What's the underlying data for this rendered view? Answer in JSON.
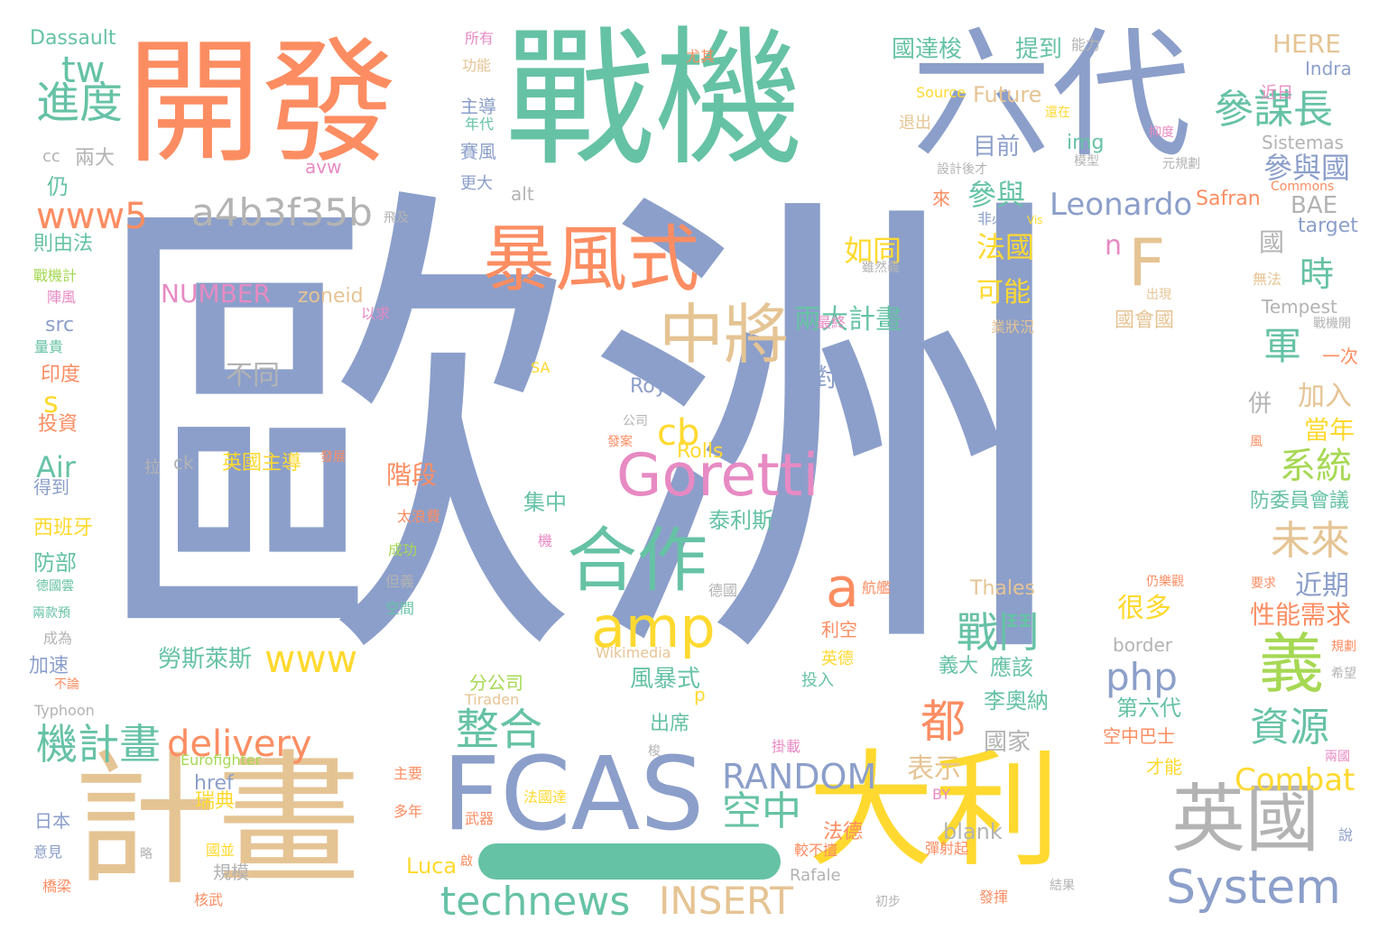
{
  "palette": {
    "blue": "#8c9fca",
    "teal": "#66c2a5",
    "orange": "#fc8d62",
    "yellow": "#ffd92f",
    "tan": "#e5c494",
    "gray": "#b3b3b3",
    "green": "#a6d854",
    "pink": "#e78ac3"
  },
  "decoration": {
    "dash_bar_color": "#66c2a5"
  },
  "words": [
    {
      "text": "歐洲",
      "color": "#8c9fca"
    },
    {
      "text": "戰機",
      "color": "#66c2a5"
    },
    {
      "text": "開發",
      "color": "#fc8d62"
    },
    {
      "text": "六代",
      "color": "#8c9fca"
    },
    {
      "text": "計畫",
      "color": "#e5c494"
    },
    {
      "text": "大利",
      "color": "#ffd92f"
    },
    {
      "text": "FCAS",
      "color": "#8c9fca"
    },
    {
      "text": "暴風式",
      "color": "#fc8d62"
    },
    {
      "text": "英國",
      "color": "#b3b3b3"
    },
    {
      "text": "中將",
      "color": "#e5c494"
    },
    {
      "text": "合作",
      "color": "#66c2a5"
    },
    {
      "text": "amp",
      "color": "#ffd92f"
    },
    {
      "text": "Goretti",
      "color": "#e78ac3"
    },
    {
      "text": "a4b3f35b",
      "color": "#b3b3b3"
    },
    {
      "text": "參謀長",
      "color": "#66c2a5"
    },
    {
      "text": "義",
      "color": "#a6d854"
    },
    {
      "text": "F",
      "color": "#e5c494"
    },
    {
      "text": "System",
      "color": "#8c9fca"
    },
    {
      "text": "technews",
      "color": "#66c2a5"
    },
    {
      "text": "INSERT",
      "color": "#e5c494"
    },
    {
      "text": "機計畫",
      "color": "#66c2a5"
    },
    {
      "text": "delivery",
      "color": "#fc8d62"
    },
    {
      "text": "進度",
      "color": "#66c2a5"
    },
    {
      "text": "www5",
      "color": "#fc8d62"
    },
    {
      "text": "tw",
      "color": "#66c2a5"
    },
    {
      "text": "整合",
      "color": "#66c2a5"
    },
    {
      "text": "RANDOM",
      "color": "#8c9fca"
    },
    {
      "text": "空中",
      "color": "#66c2a5"
    },
    {
      "text": "www",
      "color": "#ffd92f"
    },
    {
      "text": "戰鬥",
      "color": "#66c2a5"
    },
    {
      "text": "都",
      "color": "#fc8d62"
    },
    {
      "text": "資源",
      "color": "#66c2a5"
    },
    {
      "text": "php",
      "color": "#8c9fca"
    },
    {
      "text": "系統",
      "color": "#a6d854"
    },
    {
      "text": "未來",
      "color": "#e5c494"
    },
    {
      "text": "時",
      "color": "#66c2a5"
    },
    {
      "text": "軍",
      "color": "#66c2a5"
    },
    {
      "text": "cb",
      "color": "#ffd92f"
    },
    {
      "text": "a",
      "color": "#fc8d62"
    },
    {
      "text": "n",
      "color": "#e78ac3"
    },
    {
      "text": "Leonardo",
      "color": "#8c9fca"
    },
    {
      "text": "Combat",
      "color": "#ffd92f"
    },
    {
      "text": "參與國",
      "color": "#8c9fca"
    },
    {
      "text": "兩大計畫",
      "color": "#66c2a5"
    },
    {
      "text": "如同",
      "color": "#ffd92f"
    },
    {
      "text": "法國",
      "color": "#ffd92f"
    },
    {
      "text": "可能",
      "color": "#ffd92f"
    },
    {
      "text": "參與",
      "color": "#66c2a5"
    },
    {
      "text": "目前",
      "color": "#8c9fca"
    },
    {
      "text": "國達梭",
      "color": "#66c2a5"
    },
    {
      "text": "提到",
      "color": "#66c2a5"
    },
    {
      "text": "HERE",
      "color": "#e5c494"
    },
    {
      "text": "Future",
      "color": "#e5c494"
    },
    {
      "text": "img",
      "color": "#66c2a5"
    },
    {
      "text": "Sistemas",
      "color": "#b3b3b3"
    },
    {
      "text": "Safran",
      "color": "#fc8d62"
    },
    {
      "text": "BAE",
      "color": "#b3b3b3"
    },
    {
      "text": "target",
      "color": "#8c9fca"
    },
    {
      "text": "國",
      "color": "#b3b3b3"
    },
    {
      "text": "Tempest",
      "color": "#b3b3b3"
    },
    {
      "text": "國會國",
      "color": "#e5c494"
    },
    {
      "text": "NUMBER",
      "color": "#e78ac3"
    },
    {
      "text": "zoneid",
      "color": "#e5c494"
    },
    {
      "text": "不同",
      "color": "#b3b3b3"
    },
    {
      "text": "階段",
      "color": "#fc8d62"
    },
    {
      "text": "Royce",
      "color": "#8c9fca"
    },
    {
      "text": "Rolls",
      "color": "#ffd92f"
    },
    {
      "text": "泰利斯",
      "color": "#66c2a5"
    },
    {
      "text": "集中",
      "color": "#66c2a5"
    },
    {
      "text": "加入",
      "color": "#e5c494"
    },
    {
      "text": "當年",
      "color": "#ffd92f"
    },
    {
      "text": "近期",
      "color": "#8c9fca"
    },
    {
      "text": "性能需求",
      "color": "#fc8d62"
    },
    {
      "text": "很多",
      "color": "#ffd92f"
    },
    {
      "text": "防委員會議",
      "color": "#66c2a5"
    },
    {
      "text": "風暴式",
      "color": "#66c2a5"
    },
    {
      "text": "勞斯萊斯",
      "color": "#66c2a5"
    },
    {
      "text": "應該",
      "color": "#66c2a5"
    },
    {
      "text": "李奧納",
      "color": "#66c2a5"
    },
    {
      "text": "國家",
      "color": "#b3b3b3"
    },
    {
      "text": "第六代",
      "color": "#66c2a5"
    },
    {
      "text": "表示",
      "color": "#e5c494"
    },
    {
      "text": "空中巴士",
      "color": "#fc8d62"
    },
    {
      "text": "Thales",
      "color": "#e5c494"
    },
    {
      "text": "border",
      "color": "#b3b3b3"
    },
    {
      "text": "href",
      "color": "#8c9fca"
    },
    {
      "text": "Luca",
      "color": "#ffd92f"
    },
    {
      "text": "blank",
      "color": "#b3b3b3"
    },
    {
      "text": "Typhoon",
      "color": "#b3b3b3"
    },
    {
      "text": "Eurofighter",
      "color": "#a6d854"
    },
    {
      "text": "Wikimedia",
      "color": "#e5c494"
    },
    {
      "text": "Rafale",
      "color": "#b3b3b3"
    },
    {
      "text": "Tiraden",
      "color": "#e5c494"
    },
    {
      "text": "Dassault",
      "color": "#66c2a5"
    },
    {
      "text": "Air",
      "color": "#66c2a5"
    },
    {
      "text": "s",
      "color": "#ffd92f"
    },
    {
      "text": "src",
      "color": "#8c9fca"
    },
    {
      "text": "alt",
      "color": "#b3b3b3"
    },
    {
      "text": "avw",
      "color": "#e78ac3"
    },
    {
      "text": "ck",
      "color": "#b3b3b3"
    },
    {
      "text": "cc",
      "color": "#b3b3b3"
    },
    {
      "text": "BY",
      "color": "#e78ac3"
    },
    {
      "text": "SA",
      "color": "#ffd92f"
    },
    {
      "text": "p",
      "color": "#ffd92f"
    },
    {
      "text": "Indra",
      "color": "#8c9fca"
    },
    {
      "text": "Source",
      "color": "#ffd92f"
    },
    {
      "text": "Commons",
      "color": "#fc8d62"
    },
    {
      "text": "Vis",
      "color": "#ffd92f"
    },
    {
      "text": "英國主導",
      "color": "#ffd92f"
    },
    {
      "text": "西班牙",
      "color": "#ffd92f"
    },
    {
      "text": "防部",
      "color": "#66c2a5"
    },
    {
      "text": "印度",
      "color": "#fc8d62"
    },
    {
      "text": "投資",
      "color": "#fc8d62"
    },
    {
      "text": "得到",
      "color": "#8c9fca"
    },
    {
      "text": "加速",
      "color": "#8c9fca"
    },
    {
      "text": "日本",
      "color": "#8c9fca"
    },
    {
      "text": "瑞典",
      "color": "#ffd92f"
    },
    {
      "text": "規模",
      "color": "#b3b3b3"
    },
    {
      "text": "多年",
      "color": "#fc8d62"
    },
    {
      "text": "出席",
      "color": "#66c2a5"
    },
    {
      "text": "分公司",
      "color": "#a6d854"
    },
    {
      "text": "對",
      "color": "#8c9fca"
    },
    {
      "text": "併",
      "color": "#b3b3b3"
    },
    {
      "text": "義大",
      "color": "#66c2a5"
    },
    {
      "text": "法德",
      "color": "#fc8d62"
    },
    {
      "text": "才能",
      "color": "#ffd92f"
    },
    {
      "text": "兩大",
      "color": "#b3b3b3"
    },
    {
      "text": "則由法",
      "color": "#66c2a5"
    },
    {
      "text": "仍",
      "color": "#66c2a5"
    },
    {
      "text": "賽風",
      "color": "#8c9fca"
    },
    {
      "text": "主導",
      "color": "#8c9fca"
    },
    {
      "text": "更大",
      "color": "#8c9fca"
    },
    {
      "text": "年代",
      "color": "#66c2a5"
    },
    {
      "text": "所有",
      "color": "#e78ac3"
    },
    {
      "text": "功能",
      "color": "#e5c494"
    },
    {
      "text": "近日",
      "color": "#e78ac3"
    },
    {
      "text": "能力",
      "color": "#b3b3b3"
    },
    {
      "text": "尤其",
      "color": "#fc8d62"
    },
    {
      "text": "退出",
      "color": "#e5c494"
    },
    {
      "text": "還在",
      "color": "#ffd92f"
    },
    {
      "text": "模型",
      "color": "#b3b3b3"
    },
    {
      "text": "抑度",
      "color": "#e78ac3"
    },
    {
      "text": "元規劃",
      "color": "#b3b3b3"
    },
    {
      "text": "設計後才",
      "color": "#b3b3b3"
    },
    {
      "text": "來",
      "color": "#fc8d62"
    },
    {
      "text": "非必要",
      "color": "#8c9fca"
    },
    {
      "text": "飛及",
      "color": "#b3b3b3"
    },
    {
      "text": "雖然義",
      "color": "#b3b3b3"
    },
    {
      "text": "戰機計",
      "color": "#a6d854"
    },
    {
      "text": "陣風",
      "color": "#e78ac3"
    },
    {
      "text": "出現",
      "color": "#e5c494"
    },
    {
      "text": "無法",
      "color": "#e5c494"
    },
    {
      "text": "戰機開",
      "color": "#b3b3b3"
    },
    {
      "text": "業狀況",
      "color": "#e5c494"
    },
    {
      "text": "最終",
      "color": "#e78ac3"
    },
    {
      "text": "以求",
      "color": "#e78ac3"
    },
    {
      "text": "量貴",
      "color": "#66c2a5"
    },
    {
      "text": "一次",
      "color": "#fc8d62"
    },
    {
      "text": "公司",
      "color": "#b3b3b3"
    },
    {
      "text": "發案",
      "color": "#fc8d62"
    },
    {
      "text": "發展",
      "color": "#fc8d62"
    },
    {
      "text": "拉",
      "color": "#b3b3b3"
    },
    {
      "text": "風",
      "color": "#fc8d62"
    },
    {
      "text": "太浪費",
      "color": "#fc8d62"
    },
    {
      "text": "成功",
      "color": "#a6d854"
    },
    {
      "text": "機",
      "color": "#e78ac3"
    },
    {
      "text": "但義",
      "color": "#b3b3b3"
    },
    {
      "text": "空間",
      "color": "#66c2a5"
    },
    {
      "text": "德國",
      "color": "#b3b3b3"
    },
    {
      "text": "航艦",
      "color": "#fc8d62"
    },
    {
      "text": "利空",
      "color": "#fc8d62"
    },
    {
      "text": "英德",
      "color": "#ffd92f"
    },
    {
      "text": "投入",
      "color": "#66c2a5"
    },
    {
      "text": "仍樂觀",
      "color": "#fc8d62"
    },
    {
      "text": "規劃",
      "color": "#fc8d62"
    },
    {
      "text": "要求",
      "color": "#fc8d62"
    },
    {
      "text": "希望",
      "color": "#b3b3b3"
    },
    {
      "text": "兩國",
      "color": "#e78ac3"
    },
    {
      "text": "說",
      "color": "#8c9fca"
    },
    {
      "text": "德國雲",
      "color": "#66c2a5"
    },
    {
      "text": "兩款預",
      "color": "#66c2a5"
    },
    {
      "text": "成為",
      "color": "#b3b3b3"
    },
    {
      "text": "不論",
      "color": "#fc8d62"
    },
    {
      "text": "主要",
      "color": "#fc8d62"
    },
    {
      "text": "法國達",
      "color": "#ffd92f"
    },
    {
      "text": "武器",
      "color": "#fc8d62"
    },
    {
      "text": "彈射起",
      "color": "#fc8d62"
    },
    {
      "text": "掛載",
      "color": "#e78ac3"
    },
    {
      "text": "較不擅",
      "color": "#fc8d62"
    },
    {
      "text": "發揮",
      "color": "#fc8d62"
    },
    {
      "text": "結果",
      "color": "#b3b3b3"
    },
    {
      "text": "初步",
      "color": "#b3b3b3"
    },
    {
      "text": "核武",
      "color": "#fc8d62"
    },
    {
      "text": "國並",
      "color": "#ffd92f"
    },
    {
      "text": "略",
      "color": "#b3b3b3"
    },
    {
      "text": "意見",
      "color": "#8c9fca"
    },
    {
      "text": "橋梁",
      "color": "#fc8d62"
    },
    {
      "text": "梭",
      "color": "#b3b3b3"
    },
    {
      "text": "啟",
      "color": "#fc8d62"
    }
  ]
}
